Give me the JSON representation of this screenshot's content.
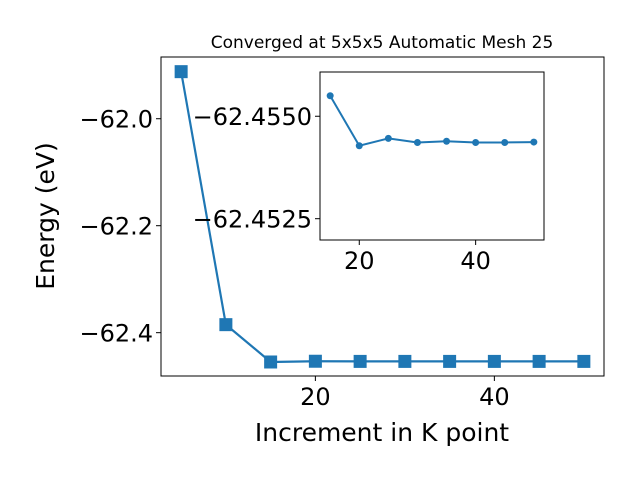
{
  "chart_data": [
    {
      "type": "line",
      "title": "Converged at 5x5x5 Automatic Mesh 25",
      "xlabel": "Increment in K point",
      "ylabel": "Energy (eV)",
      "marker": "square",
      "color": "#1f77b4",
      "x": [
        5,
        10,
        15,
        20,
        25,
        30,
        35,
        40,
        45,
        50
      ],
      "y": [
        -61.912,
        -62.385,
        -62.4548,
        -62.4534,
        -62.4537,
        -62.4537,
        -62.4537,
        -62.4537,
        -62.4537,
        -62.4537
      ],
      "xlim": [
        2.75,
        52.25
      ],
      "ylim": [
        -62.481,
        -61.8846
      ],
      "xticks": [
        20,
        40
      ],
      "yticks": [
        -62.4,
        -62.2,
        -62.0
      ],
      "xtick_labels": [
        "20",
        "40"
      ],
      "ytick_labels": [
        "−62.4",
        "−62.2",
        "−62.0"
      ],
      "grid": false,
      "legend": "none"
    },
    {
      "type": "line",
      "title": "",
      "xlabel": "",
      "ylabel": "",
      "marker": "circle",
      "color": "#1f77b4",
      "x": [
        15,
        20,
        25,
        30,
        35,
        40,
        45,
        50
      ],
      "y": [
        -62.4555,
        -62.45428,
        -62.45446,
        -62.45436,
        -62.45439,
        -62.45436,
        -62.45436,
        -62.45437
      ],
      "xlim": [
        13.25,
        51.75
      ],
      "ylim": [
        -62.45198,
        -62.45608
      ],
      "xticks": [
        20,
        40
      ],
      "yticks": [
        -62.4525,
        -62.455
      ],
      "xtick_labels": [
        "20",
        "40"
      ],
      "ytick_labels": [
        "−62.4525",
        "−62.4550"
      ],
      "grid": false,
      "legend": "none"
    }
  ]
}
